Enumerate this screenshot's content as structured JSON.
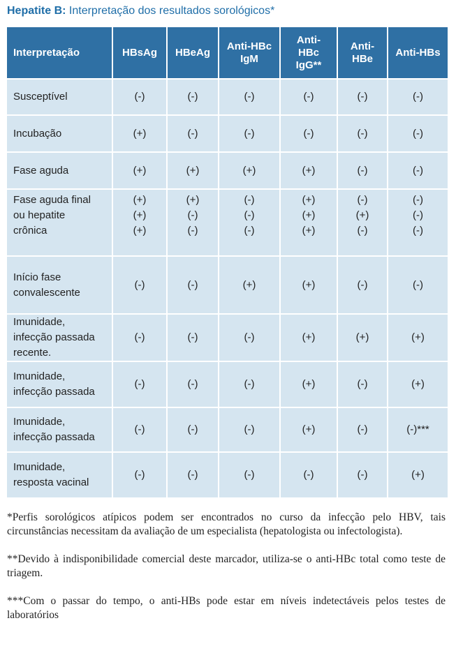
{
  "title": {
    "bold": "Hepatite B:",
    "rest": " Interpretação dos resultados sorológicos*"
  },
  "table": {
    "headers": [
      [
        "Interpretação"
      ],
      [
        "HBsAg"
      ],
      [
        "HBeAg"
      ],
      [
        "Anti-HBc",
        "IgM"
      ],
      [
        "Anti-",
        "HBc",
        "IgG**"
      ],
      [
        "Anti-",
        "HBe"
      ],
      [
        "Anti-HBs"
      ]
    ],
    "rows": [
      {
        "height": 52,
        "cells": [
          [
            "Susceptível"
          ],
          [
            "(-)"
          ],
          [
            "(-)"
          ],
          [
            "(-)"
          ],
          [
            "(-)"
          ],
          [
            "(-)"
          ],
          [
            "(-)"
          ]
        ]
      },
      {
        "height": 53,
        "cells": [
          [
            "Incubação"
          ],
          [
            "(+)"
          ],
          [
            "(-)"
          ],
          [
            "(-)"
          ],
          [
            "(-)"
          ],
          [
            "(-)"
          ],
          [
            "(-)"
          ]
        ]
      },
      {
        "height": 53,
        "cells": [
          [
            "Fase aguda"
          ],
          [
            "(+)"
          ],
          [
            "(+)"
          ],
          [
            "(+)"
          ],
          [
            "(+)"
          ],
          [
            "(-)"
          ],
          [
            "(-)"
          ]
        ]
      },
      {
        "height": 96,
        "top": true,
        "cells": [
          [
            "Fase aguda final",
            "ou hepatite",
            "crônica"
          ],
          [
            "(+)",
            "(+)",
            "(+)"
          ],
          [
            "(+)",
            "(-)",
            "(-)"
          ],
          [
            "(-)",
            "(-)",
            "(-)"
          ],
          [
            "(+)",
            "(+)",
            "(+)"
          ],
          [
            "(-)",
            "(+)",
            "(-)"
          ],
          [
            "(-)",
            "(-)",
            "(-)"
          ]
        ]
      },
      {
        "height": 83,
        "cells": [
          [
            "Início fase",
            "convalescente"
          ],
          [
            "(-)"
          ],
          [
            "(-)"
          ],
          [
            "(+)"
          ],
          [
            "(+)"
          ],
          [
            "(-)"
          ],
          [
            "(-)"
          ]
        ]
      },
      {
        "height": 66,
        "cells": [
          [
            "Imunidade,",
            "infecção passada",
            "recente."
          ],
          [
            "(-)"
          ],
          [
            "(-)"
          ],
          [
            "(-)"
          ],
          [
            "(+)"
          ],
          [
            "(+)"
          ],
          [
            "(+)"
          ]
        ]
      },
      {
        "height": 66,
        "cells": [
          [
            "Imunidade,",
            "infecção passada"
          ],
          [
            "(-)"
          ],
          [
            "(-)"
          ],
          [
            "(-)"
          ],
          [
            "(+)"
          ],
          [
            "(-)"
          ],
          [
            "(+)"
          ]
        ]
      },
      {
        "height": 64,
        "cells": [
          [
            "Imunidade,",
            "infecção passada"
          ],
          [
            "(-)"
          ],
          [
            "(-)"
          ],
          [
            "(-)"
          ],
          [
            "(+)"
          ],
          [
            "(-)"
          ],
          [
            "(-)***"
          ]
        ]
      },
      {
        "height": 66,
        "cells": [
          [
            "Imunidade,",
            "resposta vacinal"
          ],
          [
            "(-)"
          ],
          [
            "(-)"
          ],
          [
            "(-)"
          ],
          [
            "(-)"
          ],
          [
            "(-)"
          ],
          [
            "(+)"
          ]
        ]
      }
    ]
  },
  "notes": [
    "*Perfis sorológicos atípicos podem ser encontrados no curso da infecção pelo HBV, tais circunstâncias necessitam da avaliação de um especialista (hepatologista ou infectologista).",
    "**Devido à indisponibilidade comercial deste marcador, utiliza-se o anti-HBc total como teste de triagem.",
    "***Com o passar do tempo, o anti-HBs pode estar em níveis indetectáveis pelos testes de laboratórios"
  ]
}
